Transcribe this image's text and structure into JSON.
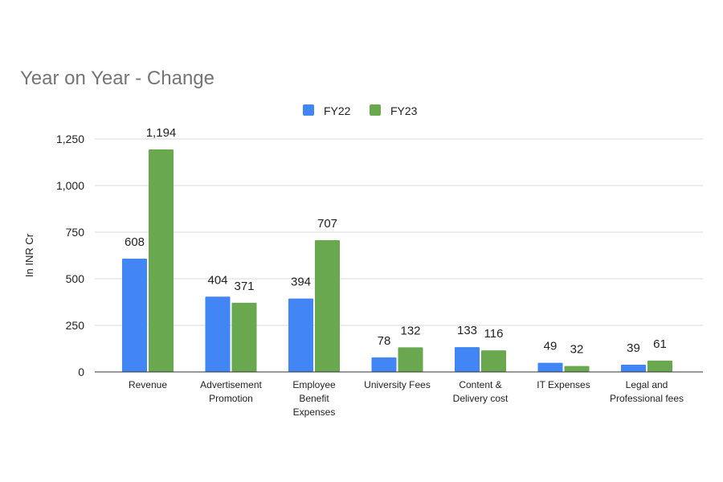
{
  "chart_data": {
    "type": "bar",
    "title": "Year on Year - Change",
    "xlabel": "",
    "ylabel": "In INR Cr",
    "ylim": [
      0,
      1250
    ],
    "yticks": [
      0,
      250,
      500,
      750,
      1000,
      1250
    ],
    "ytick_labels": [
      "0",
      "250",
      "500",
      "750",
      "1,000",
      "1,250"
    ],
    "grid": true,
    "legend_position": "top-center",
    "categories": [
      [
        "Revenue"
      ],
      [
        "Advertisement",
        "Promotion"
      ],
      [
        "Employee",
        "Benefit",
        "Expenses"
      ],
      [
        "University Fees"
      ],
      [
        "Content &",
        "Delivery cost"
      ],
      [
        "IT Expenses"
      ],
      [
        "Legal and",
        "Professional fees"
      ]
    ],
    "series": [
      {
        "name": "FY22",
        "color": "#4285F4",
        "values": [
          608,
          404,
          394,
          78,
          133,
          49,
          39
        ],
        "labels": [
          "608",
          "404",
          "394",
          "78",
          "133",
          "49",
          "39"
        ]
      },
      {
        "name": "FY23",
        "color": "#6AA84F",
        "values": [
          1194,
          371,
          707,
          132,
          116,
          32,
          61
        ],
        "labels": [
          "1,194",
          "371",
          "707",
          "132",
          "116",
          "32",
          "61"
        ]
      }
    ]
  }
}
